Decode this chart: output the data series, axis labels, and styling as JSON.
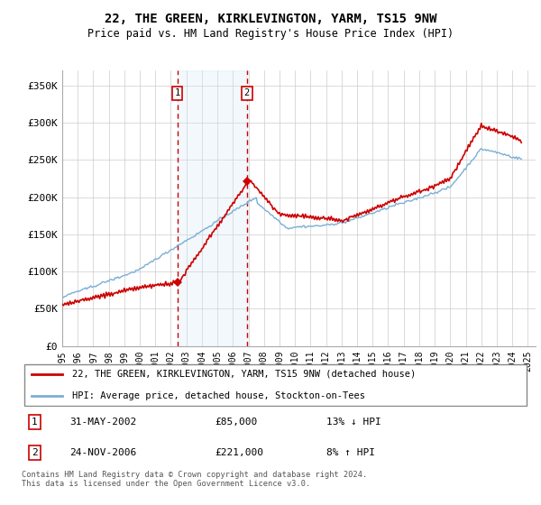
{
  "title": "22, THE GREEN, KIRKLEVINGTON, YARM, TS15 9NW",
  "subtitle": "Price paid vs. HM Land Registry's House Price Index (HPI)",
  "ylabel_ticks": [
    "£0",
    "£50K",
    "£100K",
    "£150K",
    "£200K",
    "£250K",
    "£300K",
    "£350K"
  ],
  "ylim": [
    0,
    370000
  ],
  "xlim_start": 1995.0,
  "xlim_end": 2025.5,
  "legend_line1": "22, THE GREEN, KIRKLEVINGTON, YARM, TS15 9NW (detached house)",
  "legend_line2": "HPI: Average price, detached house, Stockton-on-Tees",
  "transaction1_date": "31-MAY-2002",
  "transaction1_price": "£85,000",
  "transaction1_hpi": "13% ↓ HPI",
  "transaction2_date": "24-NOV-2006",
  "transaction2_price": "£221,000",
  "transaction2_hpi": "8% ↑ HPI",
  "footer": "Contains HM Land Registry data © Crown copyright and database right 2024.\nThis data is licensed under the Open Government Licence v3.0.",
  "hpi_color": "#7bafd4",
  "price_color": "#cc0000",
  "transaction_color": "#cc0000",
  "shade_color": "#d6e8f5",
  "marker1_x": 2002.42,
  "marker2_x": 2006.9,
  "marker1_y": 85000,
  "marker2_y": 221000
}
